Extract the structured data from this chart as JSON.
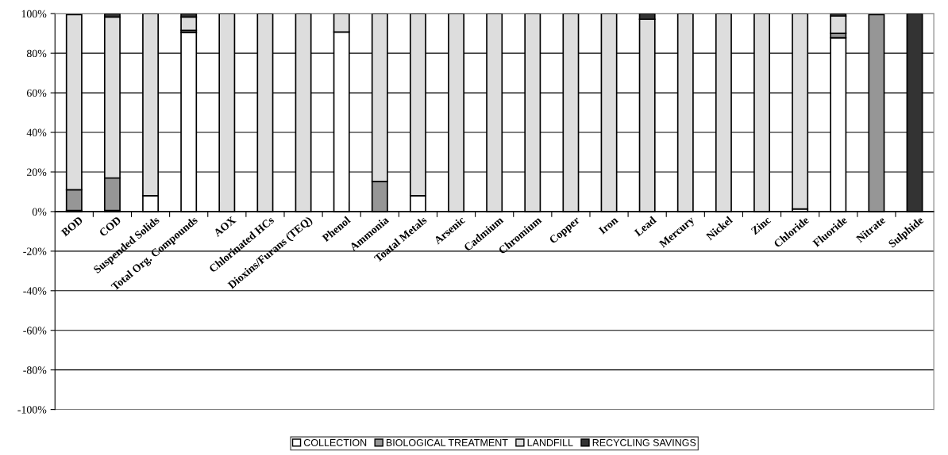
{
  "chart_data": {
    "type": "bar",
    "stacked": true,
    "categories": [
      "BOD",
      "COD",
      "Suspended Solids",
      "Total Org. Compounds",
      "AOX",
      "Chlorinated HCs",
      "Dioxins/Furans (TEQ)",
      "Phenol",
      "Ammonia",
      "Toatal Metals",
      "Arsenic",
      "Cadmium",
      "Chromium",
      "Copper",
      "Iron",
      "Lead",
      "Mercury",
      "Nickel",
      "Zinc",
      "Chloride",
      "Fluoride",
      "Nitrate",
      "Sulphide"
    ],
    "series": [
      {
        "name": "COLLECTION",
        "color": "#ffffff",
        "values": [
          0.5,
          0.5,
          8,
          90.5,
          0,
          0,
          0,
          90.7,
          0,
          8,
          0,
          0,
          0,
          0,
          0,
          0,
          0,
          0,
          0,
          1.3,
          87.8,
          0,
          0
        ]
      },
      {
        "name": "BIOLOGICAL TREATMENT",
        "color": "#969696",
        "values": [
          10.5,
          16.5,
          0,
          1,
          0,
          0,
          0,
          0,
          15.2,
          0,
          0,
          0,
          0,
          0,
          0,
          0,
          0,
          0,
          0,
          0,
          2.2,
          99.5,
          0
        ]
      },
      {
        "name": "LANDFILL",
        "color": "#dddddd",
        "values": [
          88.5,
          81.3,
          92,
          6.8,
          100,
          100,
          100,
          9.3,
          84.8,
          92,
          100,
          100,
          100,
          100,
          100,
          97.2,
          100,
          100,
          100,
          98.7,
          8.8,
          0,
          0
        ]
      },
      {
        "name": "RECYCLING SAVINGS",
        "color": "#333333",
        "values": [
          null,
          1.7,
          0,
          1.7,
          0,
          0,
          0,
          0,
          0,
          0,
          0,
          0,
          0,
          0,
          0,
          2.8,
          0,
          0,
          0,
          0,
          1.2,
          0,
          100
        ]
      }
    ],
    "ylim": [
      -100,
      100
    ],
    "yticks": [
      {
        "value": -100,
        "label": "-100%"
      },
      {
        "value": -80,
        "label": "-80%"
      },
      {
        "value": -60,
        "label": "-60%"
      },
      {
        "value": -40,
        "label": "-40%"
      },
      {
        "value": -20,
        "label": "-20%"
      },
      {
        "value": 0,
        "label": "0%"
      },
      {
        "value": 20,
        "label": "20%"
      },
      {
        "value": 40,
        "label": "40%"
      },
      {
        "value": 60,
        "label": "60%"
      },
      {
        "value": 80,
        "label": "80%"
      },
      {
        "value": 100,
        "label": "100%"
      }
    ],
    "grid": "y",
    "legend": "bottom"
  }
}
